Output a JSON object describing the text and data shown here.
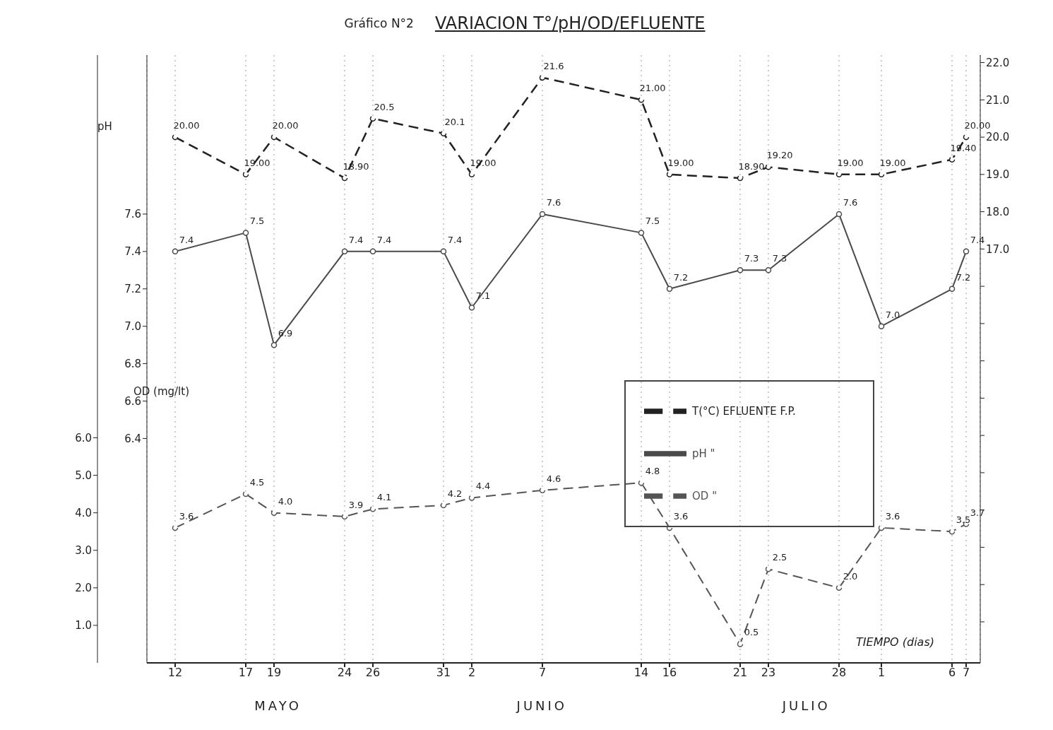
{
  "chart_data": {
    "type": "line",
    "title": "VARIACION T°/pH/OD/EFLUENTE",
    "subtitle": "Gráfico N°2",
    "xlabel": "TIEMPO (dias)",
    "ylabel": "pH",
    "y3label": "OD (mg/lt)",
    "annotations": [
      "MAYO",
      "JUNIO",
      "JULIO"
    ],
    "x": [
      "--05-12",
      "--05-17",
      "--05-19",
      "--05-24",
      "--05-26",
      "--05-31",
      "--06-02",
      "--06-07",
      "--06-14",
      "--06-16",
      "--06-21",
      "--06-23",
      "--06-28",
      "--07-01",
      "--07-06",
      "--07-07"
    ],
    "xlim": [
      "--05-10",
      "--07-08"
    ],
    "xticks": [
      {
        "value": "--05-12",
        "label": "12"
      },
      {
        "value": "--05-17",
        "label": "17"
      },
      {
        "value": "--05-19",
        "label": "19"
      },
      {
        "value": "--05-24",
        "label": "24"
      },
      {
        "value": "--05-26",
        "label": "26"
      },
      {
        "value": "--05-31",
        "label": "31"
      },
      {
        "value": "--06-02",
        "label": "2"
      },
      {
        "value": "--06-07",
        "label": "7"
      },
      {
        "value": "--06-14",
        "label": "14"
      },
      {
        "value": "--06-16",
        "label": "16"
      },
      {
        "value": "--06-21",
        "label": "21"
      },
      {
        "value": "--06-23",
        "label": "23"
      },
      {
        "value": "--06-28",
        "label": "28"
      },
      {
        "value": "--07-01",
        "label": "1"
      },
      {
        "value": "--07-06",
        "label": "6"
      },
      {
        "value": "--07-07",
        "label": "7"
      }
    ],
    "ylim": [
      5.2,
      8.45
    ],
    "yticks": [
      {
        "value": 6.4,
        "label": "6.4"
      },
      {
        "value": 6.6,
        "label": "6.6"
      },
      {
        "value": 6.8,
        "label": "6.8"
      },
      {
        "value": 7,
        "label": "7.0"
      },
      {
        "value": 7.2,
        "label": "7.2"
      },
      {
        "value": 7.4,
        "label": "7.4"
      },
      {
        "value": 7.6,
        "label": "7.6"
      }
    ],
    "y2lim": [
      5.9,
      22.2
    ],
    "y2ticks": [
      {
        "value": 7,
        "label": null
      },
      {
        "value": 8,
        "label": null
      },
      {
        "value": 9,
        "label": null
      },
      {
        "value": 10,
        "label": null
      },
      {
        "value": 11,
        "label": null
      },
      {
        "value": 12,
        "label": null
      },
      {
        "value": 13,
        "label": null
      },
      {
        "value": 14,
        "label": null
      },
      {
        "value": 15,
        "label": null
      },
      {
        "value": 16,
        "label": null
      },
      {
        "value": 17,
        "label": "17.0"
      },
      {
        "value": 18,
        "label": "18.0"
      },
      {
        "value": 19,
        "label": "19.0"
      },
      {
        "value": 20,
        "label": "20.0"
      },
      {
        "value": 21,
        "label": "21.0"
      },
      {
        "value": 22,
        "label": "22.0"
      }
    ],
    "y3lim": [
      0,
      16.2
    ],
    "y3ticks": [
      {
        "value": 1,
        "label": "1.0"
      },
      {
        "value": 2,
        "label": "2.0"
      },
      {
        "value": 3,
        "label": "3.0"
      },
      {
        "value": 4,
        "label": "4.0"
      },
      {
        "value": 5,
        "label": "5.0"
      },
      {
        "value": 6,
        "label": "6.0"
      }
    ],
    "grid": "x",
    "legend": "right",
    "marker": "circle",
    "series": [
      {
        "name": "T(°C) EFLUENTE F.P.",
        "color": "#222222",
        "axis": "y2",
        "line_style": "dashed",
        "values": [
          20.0,
          19.0,
          20.0,
          18.9,
          20.5,
          20.1,
          19.0,
          21.6,
          21.0,
          19.0,
          18.9,
          19.2,
          19.0,
          19.0,
          19.4,
          20.0
        ],
        "value_labels": [
          "20.00",
          "19.00",
          "20.00",
          "18.90",
          "20.5",
          "20.1",
          "19.00",
          "21.6",
          "21.00",
          "19.00",
          "18.90",
          "19.20",
          "19.00",
          "19.00",
          "19.40",
          "20.00"
        ]
      },
      {
        "name": "pH \"",
        "color": "#4a4a4a",
        "axis": "y",
        "line_style": "solid",
        "values": [
          7.4,
          7.5,
          6.9,
          7.4,
          7.4,
          7.4,
          7.1,
          7.6,
          7.5,
          7.2,
          7.3,
          7.3,
          7.6,
          7.0,
          7.2,
          7.4
        ],
        "value_labels": [
          "7.4",
          "7.5",
          "6.9",
          "7.4",
          "7.4",
          "7.4",
          "7.1",
          "7.6",
          "7.5",
          "7.2",
          "7.3",
          "7.3",
          "7.6",
          "7.0",
          "7.2",
          "7.4"
        ]
      },
      {
        "name": "OD \"",
        "color": "#555555",
        "axis": "y3",
        "line_style": "dashed",
        "values": [
          3.6,
          4.5,
          4.0,
          3.9,
          4.1,
          4.2,
          4.4,
          4.6,
          4.8,
          3.6,
          0.5,
          2.5,
          2.0,
          3.6,
          3.5,
          3.7
        ],
        "value_labels": [
          "3.6",
          "4.5",
          "4.0",
          "3.9",
          "4.1",
          "4.2",
          "4.4",
          "4.6",
          "4.8",
          "3.6",
          "0.5",
          "2.5",
          "2.0",
          "3.6",
          "3.5",
          "3.7"
        ]
      }
    ]
  }
}
